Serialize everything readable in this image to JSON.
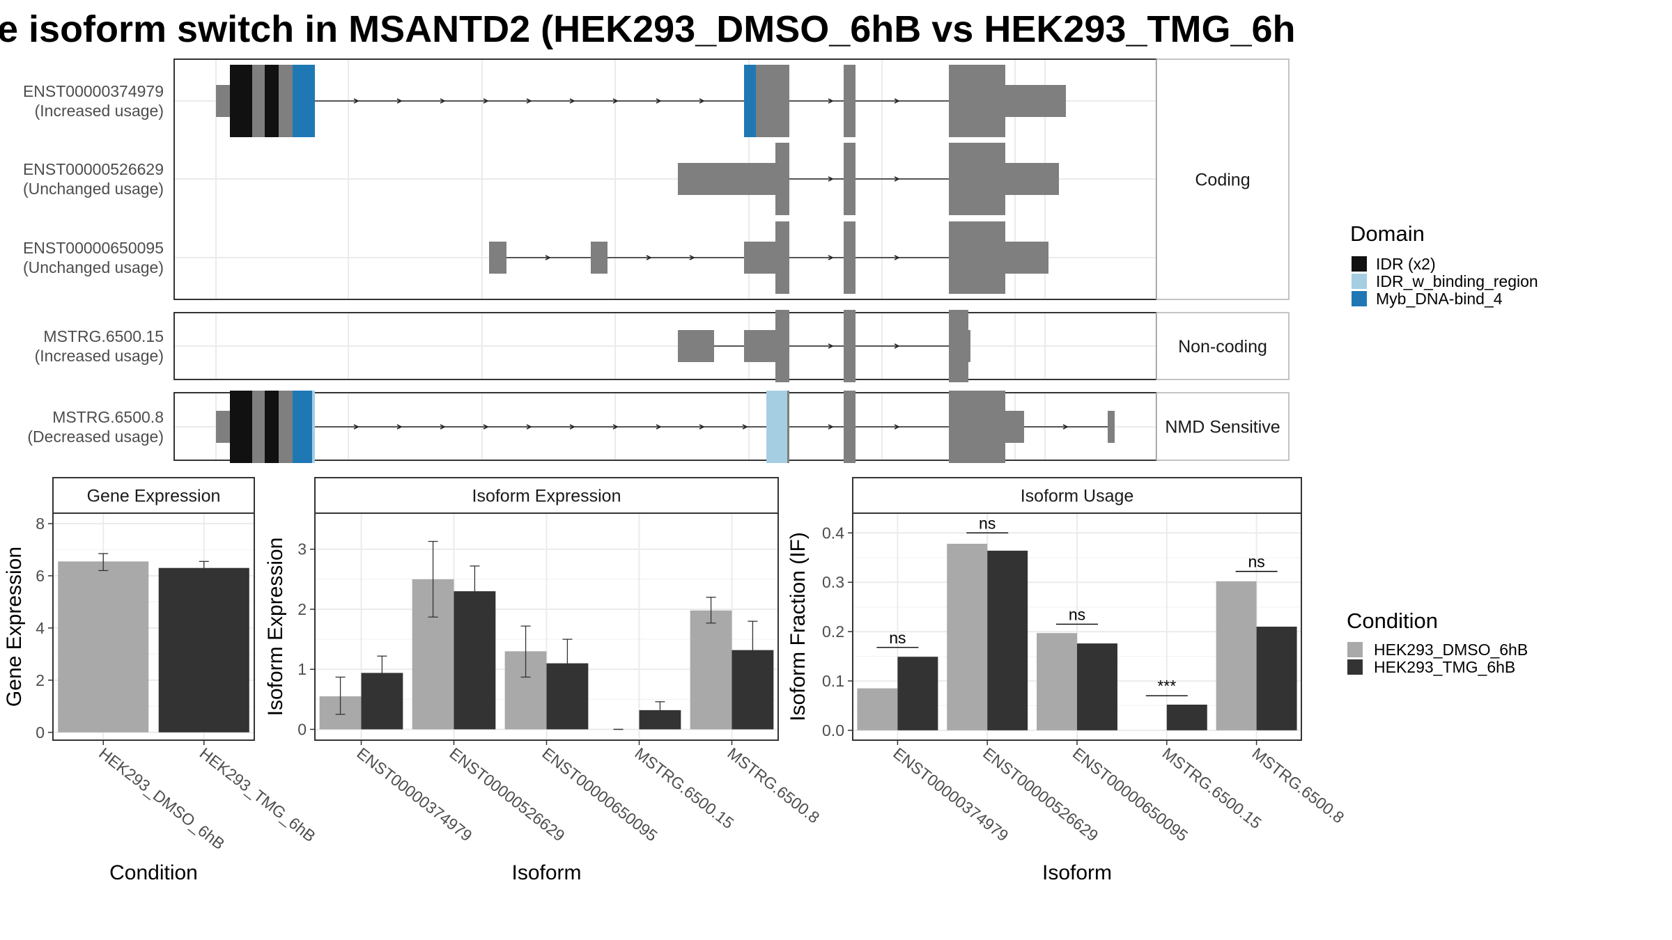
{
  "title": "e isoform switch in MSANTD2 (HEK293_DMSO_6hB vs HEK293_TMG_6h",
  "colors": {
    "IDR": "#111111",
    "IDR_w_binding_region": "#a6cee3",
    "Myb_DNA-bind_4": "#1f78b4",
    "exon": "#7f7f7f",
    "dmso": "#a9a9a9",
    "tmg": "#333333",
    "strip_bg": "#ffffff",
    "grid": "#ebebeb"
  },
  "structure": {
    "groups": [
      {
        "label": "Coding",
        "isoforms": [
          {
            "id": "ENST00000374979",
            "usage": "(Increased usage)"
          },
          {
            "id": "ENST00000526629",
            "usage": "(Unchanged usage)"
          },
          {
            "id": "ENST00000650095",
            "usage": "(Unchanged usage)"
          }
        ]
      },
      {
        "label": "Non-coding",
        "isoforms": [
          {
            "id": "MSTRG.6500.15",
            "usage": "(Increased usage)"
          }
        ]
      },
      {
        "label": "NMD Sensitive",
        "isoforms": [
          {
            "id": "MSTRG.6500.8",
            "usage": "(Decreased usage)"
          }
        ]
      }
    ],
    "domain_legend": {
      "title": "Domain",
      "items": [
        {
          "label": "IDR (x2)",
          "color": "#111111"
        },
        {
          "label": "IDR_w_binding_region",
          "color": "#a6cee3"
        },
        {
          "label": "Myb_DNA-bind_4",
          "color": "#1f78b4"
        }
      ]
    }
  },
  "condition_legend": {
    "title": "Condition",
    "items": [
      {
        "label": "HEK293_DMSO_6hB",
        "color": "#a9a9a9"
      },
      {
        "label": "HEK293_TMG_6hB",
        "color": "#333333"
      }
    ]
  },
  "chart_data": [
    {
      "type": "bar",
      "title": "Gene Expression",
      "xlabel": "Condition",
      "ylabel": "Gene Expression",
      "categories": [
        "HEK293_DMSO_6hB",
        "HEK293_TMG_6hB"
      ],
      "values": [
        6.55,
        6.3
      ],
      "errors": [
        [
          6.2,
          6.85
        ],
        [
          6.05,
          6.55
        ]
      ],
      "ylim": [
        -0.3,
        8.4
      ],
      "yticks": [
        0,
        2,
        4,
        6,
        8
      ]
    },
    {
      "type": "bar",
      "title": "Isoform Expression",
      "xlabel": "Isoform",
      "ylabel": "Isoform Expression",
      "categories": [
        "ENST00000374979",
        "ENST00000526629",
        "ENST00000650095",
        "MSTRG.6500.15",
        "MSTRG.6500.8"
      ],
      "series": [
        {
          "name": "HEK293_DMSO_6hB",
          "values": [
            0.55,
            2.5,
            1.3,
            0.0,
            1.98
          ],
          "errors": [
            [
              0.25,
              0.87
            ],
            [
              1.87,
              3.13
            ],
            [
              0.87,
              1.72
            ],
            [
              0.0,
              0.0
            ],
            [
              1.77,
              2.2
            ]
          ]
        },
        {
          "name": "HEK293_TMG_6hB",
          "values": [
            0.94,
            2.3,
            1.1,
            0.32,
            1.32
          ],
          "errors": [
            [
              0.67,
              1.22
            ],
            [
              1.9,
              2.72
            ],
            [
              0.72,
              1.5
            ],
            [
              0.18,
              0.46
            ],
            [
              0.85,
              1.8
            ]
          ]
        }
      ],
      "ylim": [
        -0.18,
        3.6
      ],
      "yticks": [
        0,
        1,
        2,
        3
      ]
    },
    {
      "type": "bar",
      "title": "Isoform Usage",
      "xlabel": "Isoform",
      "ylabel": "Isoform Fraction (IF)",
      "categories": [
        "ENST00000374979",
        "ENST00000526629",
        "ENST00000650095",
        "MSTRG.6500.15",
        "MSTRG.6500.8"
      ],
      "series": [
        {
          "name": "HEK293_DMSO_6hB",
          "values": [
            0.085,
            0.378,
            0.197,
            0.0,
            0.302
          ]
        },
        {
          "name": "HEK293_TMG_6hB",
          "values": [
            0.149,
            0.364,
            0.176,
            0.052,
            0.21
          ]
        }
      ],
      "significance": [
        "ns",
        "ns",
        "ns",
        "***",
        "ns"
      ],
      "sig_level": [
        0.168,
        0.4,
        0.215,
        0.07,
        0.322
      ],
      "ylim": [
        -0.02,
        0.44
      ],
      "yticks": [
        0.0,
        0.1,
        0.2,
        0.3,
        0.4
      ],
      "ytick_labels": [
        "0.0",
        "0.1",
        "0.2",
        "0.3",
        "0.4"
      ]
    }
  ]
}
